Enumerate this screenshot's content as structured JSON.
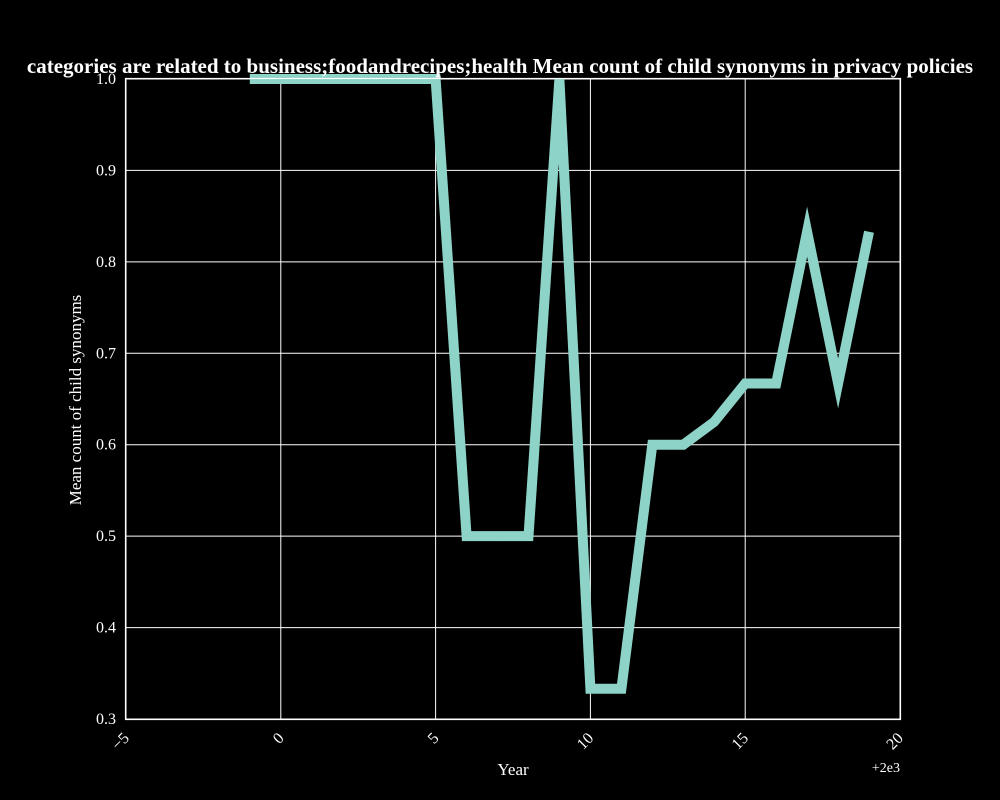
{
  "chart_data": {
    "type": "line",
    "title": "categories are related to business;foodandrecipes;health Mean count of child synonyms in privacy policies",
    "xlabel": "Year",
    "ylabel": "Mean count of child synonyms",
    "x_offset_label": "+2e3",
    "xlim": [
      -5,
      20
    ],
    "ylim": [
      0.3,
      1.0
    ],
    "x_ticks": [
      -5,
      0,
      5,
      10,
      15,
      20
    ],
    "x_tick_labels": [
      "−5",
      "0",
      "5",
      "10",
      "15",
      "20"
    ],
    "y_ticks": [
      0.3,
      0.4,
      0.5,
      0.6,
      0.7,
      0.8,
      0.9,
      1.0
    ],
    "y_tick_labels": [
      "0.3",
      "0.4",
      "0.5",
      "0.6",
      "0.7",
      "0.8",
      "0.9",
      "1.0"
    ],
    "grid": true,
    "series": [
      {
        "x": [
          -1,
          0,
          1,
          2,
          3,
          4,
          5,
          6,
          7,
          8,
          9,
          10,
          11,
          12,
          13,
          14,
          15,
          16,
          17,
          18,
          19
        ],
        "y": [
          1.0,
          1.0,
          1.0,
          1.0,
          1.0,
          1.0,
          1.0,
          0.5,
          0.5,
          0.5,
          1.0,
          0.333,
          0.333,
          0.6,
          0.6,
          0.625,
          0.667,
          0.667,
          0.833,
          0.667,
          0.833
        ],
        "color": "#8dd3c7"
      }
    ]
  },
  "colors": {
    "background": "#000000",
    "axes": "#ffffff",
    "line": "#8dd3c7"
  }
}
